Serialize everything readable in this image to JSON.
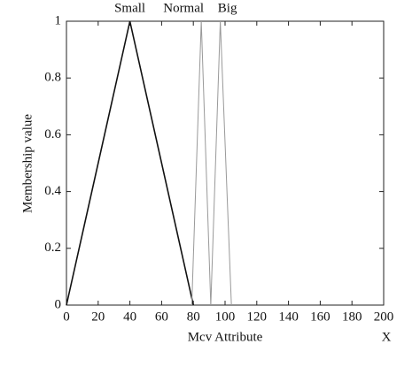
{
  "chart_data": {
    "type": "line",
    "x_label": "Mcv Attribute",
    "x_symbol": "X",
    "y_label": "Membership value",
    "xlim": [
      0,
      200
    ],
    "xticks": [
      0,
      20,
      40,
      60,
      80,
      100,
      120,
      140,
      160,
      180,
      200
    ],
    "ylim": [
      0,
      1
    ],
    "yticks": [
      0,
      0.2,
      0.4,
      0.6,
      0.8,
      1
    ],
    "series": [
      {
        "name": "Small",
        "color": "#111111",
        "x": [
          0,
          40,
          80
        ],
        "values": [
          0,
          1,
          0
        ]
      },
      {
        "name": "Normal",
        "color": "#999999",
        "x": [
          79,
          85,
          91
        ],
        "values": [
          0,
          1,
          0
        ]
      },
      {
        "name": "Big",
        "color": "#999999",
        "x": [
          91,
          97,
          104
        ],
        "values": [
          0,
          1,
          0
        ]
      }
    ]
  }
}
